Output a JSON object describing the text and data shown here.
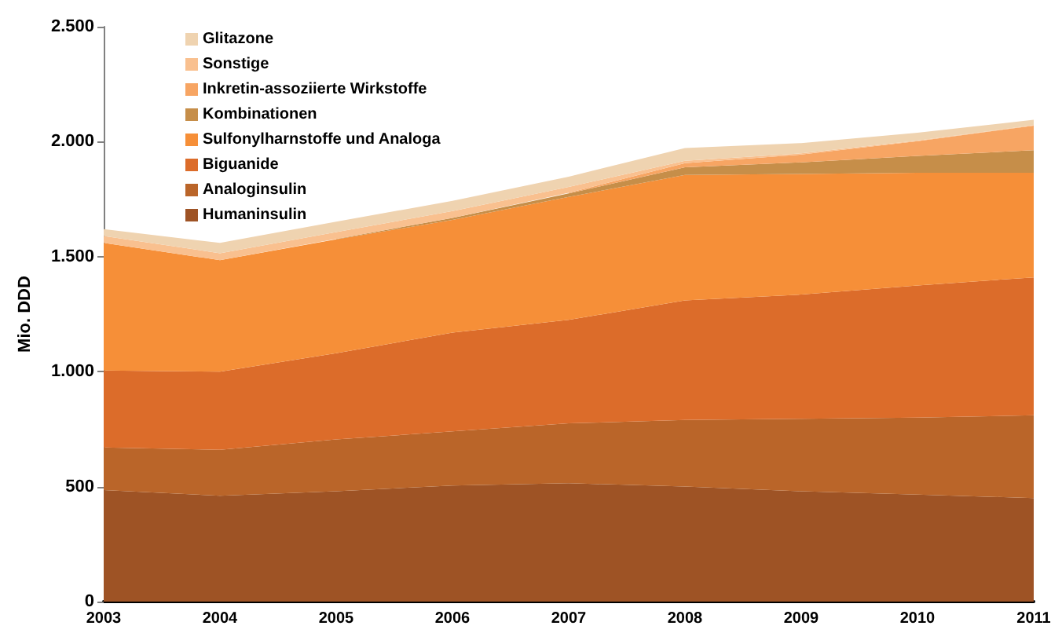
{
  "chart_data": {
    "type": "area",
    "stacked": true,
    "ylabel": "Mio. DDD",
    "categories": [
      "2003",
      "2004",
      "2005",
      "2006",
      "2007",
      "2008",
      "2009",
      "2010",
      "2011"
    ],
    "ylim": [
      0,
      2500
    ],
    "yticks": [
      0,
      500,
      {
        "value": 1000,
        "label": "1.000"
      },
      {
        "value": 1500,
        "label": "1.500"
      },
      {
        "value": 2000,
        "label": "2.000"
      },
      {
        "value": 2500,
        "label": "2.500"
      }
    ],
    "grid": false,
    "legend": "top left",
    "series": [
      {
        "name": "Humaninsulin",
        "color": "#9e5325",
        "values": [
          485,
          460,
          480,
          505,
          515,
          500,
          480,
          465,
          450
        ]
      },
      {
        "name": "Analoginsulin",
        "color": "#ba6529",
        "values": [
          185,
          200,
          225,
          235,
          260,
          290,
          315,
          335,
          360
        ]
      },
      {
        "name": "Biguanide",
        "color": "#dc6c2a",
        "values": [
          335,
          340,
          375,
          430,
          450,
          520,
          540,
          575,
          600
        ]
      },
      {
        "name": "Sulfonylharnstoffe und Analoga",
        "color": "#f68f38",
        "values": [
          555,
          485,
          495,
          490,
          535,
          545,
          525,
          490,
          455
        ]
      },
      {
        "name": "Kombinationen",
        "color": "#c68e49",
        "values": [
          null,
          null,
          2,
          8,
          15,
          34,
          50,
          73,
          98
        ]
      },
      {
        "name": "Inkretin-assoziierte Wirkstoffe",
        "color": "#f7a563",
        "values": [
          null,
          null,
          null,
          null,
          3,
          18,
          34,
          64,
          107
        ]
      },
      {
        "name": "Sonstige",
        "color": "#f9c08f",
        "values": [
          30,
          30,
          30,
          30,
          25,
          10,
          5,
          3,
          2
        ]
      },
      {
        "name": "Glitazone",
        "color": "#efd3b0",
        "values": [
          30,
          45,
          45,
          45,
          45,
          55,
          45,
          34,
          23
        ]
      }
    ]
  }
}
